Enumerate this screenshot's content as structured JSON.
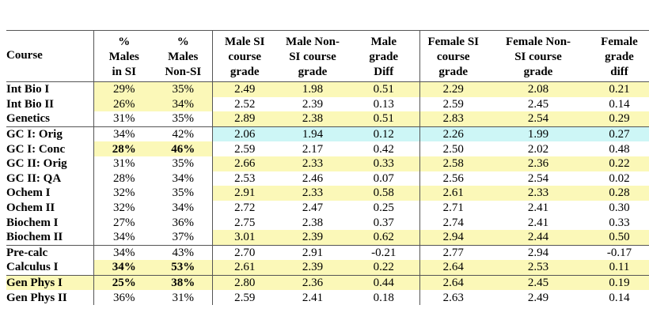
{
  "table": {
    "columns": [
      [
        "Course"
      ],
      [
        "%",
        "Males",
        "in SI"
      ],
      [
        "%",
        "Males",
        "Non-SI"
      ],
      [
        "Male SI",
        "course",
        "grade"
      ],
      [
        "Male Non-",
        "SI course",
        "grade"
      ],
      [
        "Male",
        "grade",
        "Diff"
      ],
      [
        "Female SI",
        "course",
        "grade"
      ],
      [
        "Female Non-",
        "SI course",
        "grade"
      ],
      [
        "Female",
        "grade",
        "diff"
      ]
    ],
    "groups": [
      {
        "rows": [
          {
            "cells": [
              "Int Bio I",
              "29%",
              "35%",
              "2.49",
              "1.98",
              "0.51",
              "2.29",
              "2.08",
              "0.21"
            ],
            "highlight": {
              "percent": "#fbf8b8",
              "grades": "#fbf8b8"
            }
          },
          {
            "cells": [
              "Int Bio II",
              "26%",
              "34%",
              "2.52",
              "2.39",
              "0.13",
              "2.59",
              "2.45",
              "0.14"
            ],
            "highlight": {
              "percent": "#fbf8b8"
            }
          },
          {
            "cells": [
              "Genetics",
              "31%",
              "35%",
              "2.89",
              "2.38",
              "0.51",
              "2.83",
              "2.54",
              "0.29"
            ],
            "highlight": {
              "grades": "#fbf8b8"
            }
          }
        ]
      },
      {
        "rows": [
          {
            "cells": [
              "GC I: Orig",
              "34%",
              "42%",
              "2.06",
              "1.94",
              "0.12",
              "2.26",
              "1.99",
              "0.27"
            ],
            "highlight": {
              "grades": "#cdf6f6"
            }
          },
          {
            "cells": [
              "GC I: Conc",
              "28%",
              "46%",
              "2.59",
              "2.17",
              "0.42",
              "2.50",
              "2.02",
              "0.48"
            ],
            "highlight": {
              "percent": "#fbf8b8"
            },
            "bold_percent": true
          },
          {
            "cells": [
              "GC II: Orig",
              "31%",
              "35%",
              "2.66",
              "2.33",
              "0.33",
              "2.58",
              "2.36",
              "0.22"
            ],
            "highlight": {
              "grades": "#fbf8b8"
            }
          },
          {
            "cells": [
              "GC II: QA",
              "28%",
              "34%",
              "2.53",
              "2.46",
              "0.07",
              "2.56",
              "2.54",
              "0.02"
            ]
          },
          {
            "cells": [
              "Ochem I",
              "32%",
              "35%",
              "2.91",
              "2.33",
              "0.58",
              "2.61",
              "2.33",
              "0.28"
            ],
            "highlight": {
              "grades": "#fbf8b8"
            }
          },
          {
            "cells": [
              "Ochem II",
              "32%",
              "34%",
              "2.72",
              "2.47",
              "0.25",
              "2.71",
              "2.41",
              "0.30"
            ]
          },
          {
            "cells": [
              "Biochem I",
              "27%",
              "36%",
              "2.75",
              "2.38",
              "0.37",
              "2.74",
              "2.41",
              "0.33"
            ]
          },
          {
            "cells": [
              "Biochem II",
              "34%",
              "37%",
              "3.01",
              "2.39",
              "0.62",
              "2.94",
              "2.44",
              "0.50"
            ],
            "highlight": {
              "grades": "#fbf8b8"
            }
          }
        ]
      },
      {
        "rows": [
          {
            "cells": [
              "Pre-calc",
              "34%",
              "43%",
              "2.70",
              "2.91",
              "-0.21",
              "2.77",
              "2.94",
              "-0.17"
            ]
          },
          {
            "cells": [
              "Calculus I",
              "34%",
              "53%",
              "2.61",
              "2.39",
              "0.22",
              "2.64",
              "2.53",
              "0.11"
            ],
            "highlight": {
              "percent": "#fbf8b8",
              "grades": "#fbf8b8"
            },
            "bold_percent": true
          }
        ]
      },
      {
        "rows": [
          {
            "cells": [
              "Gen Phys I",
              "25%",
              "38%",
              "2.80",
              "2.36",
              "0.44",
              "2.64",
              "2.45",
              "0.19"
            ],
            "highlight": {
              "course": "#fbf8b8",
              "percent": "#fbf8b8",
              "grades": "#fbf8b8"
            },
            "bold_percent": true
          },
          {
            "cells": [
              "Gen Phys II",
              "36%",
              "31%",
              "2.59",
              "2.41",
              "0.18",
              "2.63",
              "2.49",
              "0.14"
            ]
          }
        ]
      }
    ]
  }
}
